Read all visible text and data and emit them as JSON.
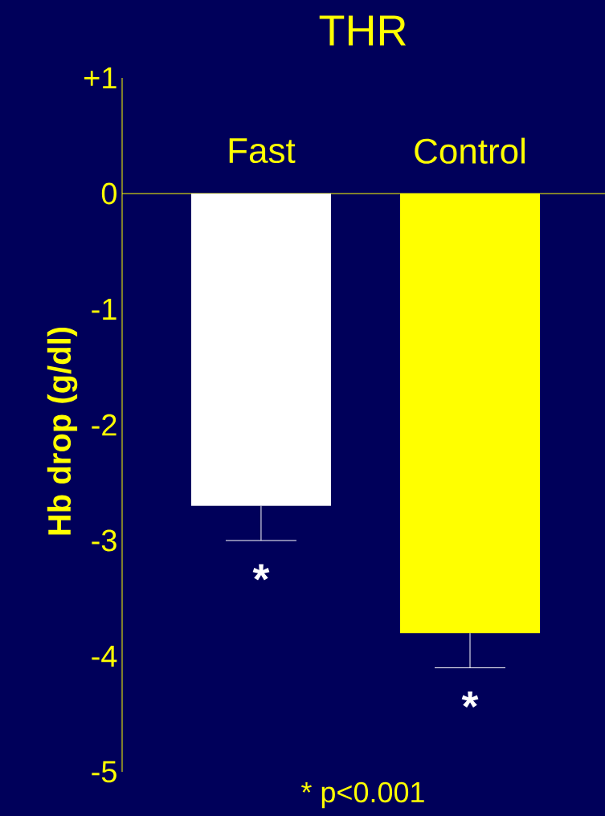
{
  "chart_data": {
    "type": "bar",
    "title": "THR",
    "ylabel": "Hb drop (g/dl)",
    "categories": [
      "Fast",
      "Control"
    ],
    "values": [
      -2.7,
      -3.8
    ],
    "colors": [
      "#ffffff",
      "#ffff00"
    ],
    "errors": [
      [
        -3.0,
        -2.7
      ],
      [
        -4.1,
        -3.8
      ]
    ],
    "ylim": [
      -5,
      1
    ],
    "yticks": [
      -5,
      -4,
      -3,
      -2,
      -1,
      0,
      {
        "value": 1,
        "label": "+1"
      }
    ],
    "annotations": [
      "*",
      "*",
      "* p<0.001"
    ]
  }
}
